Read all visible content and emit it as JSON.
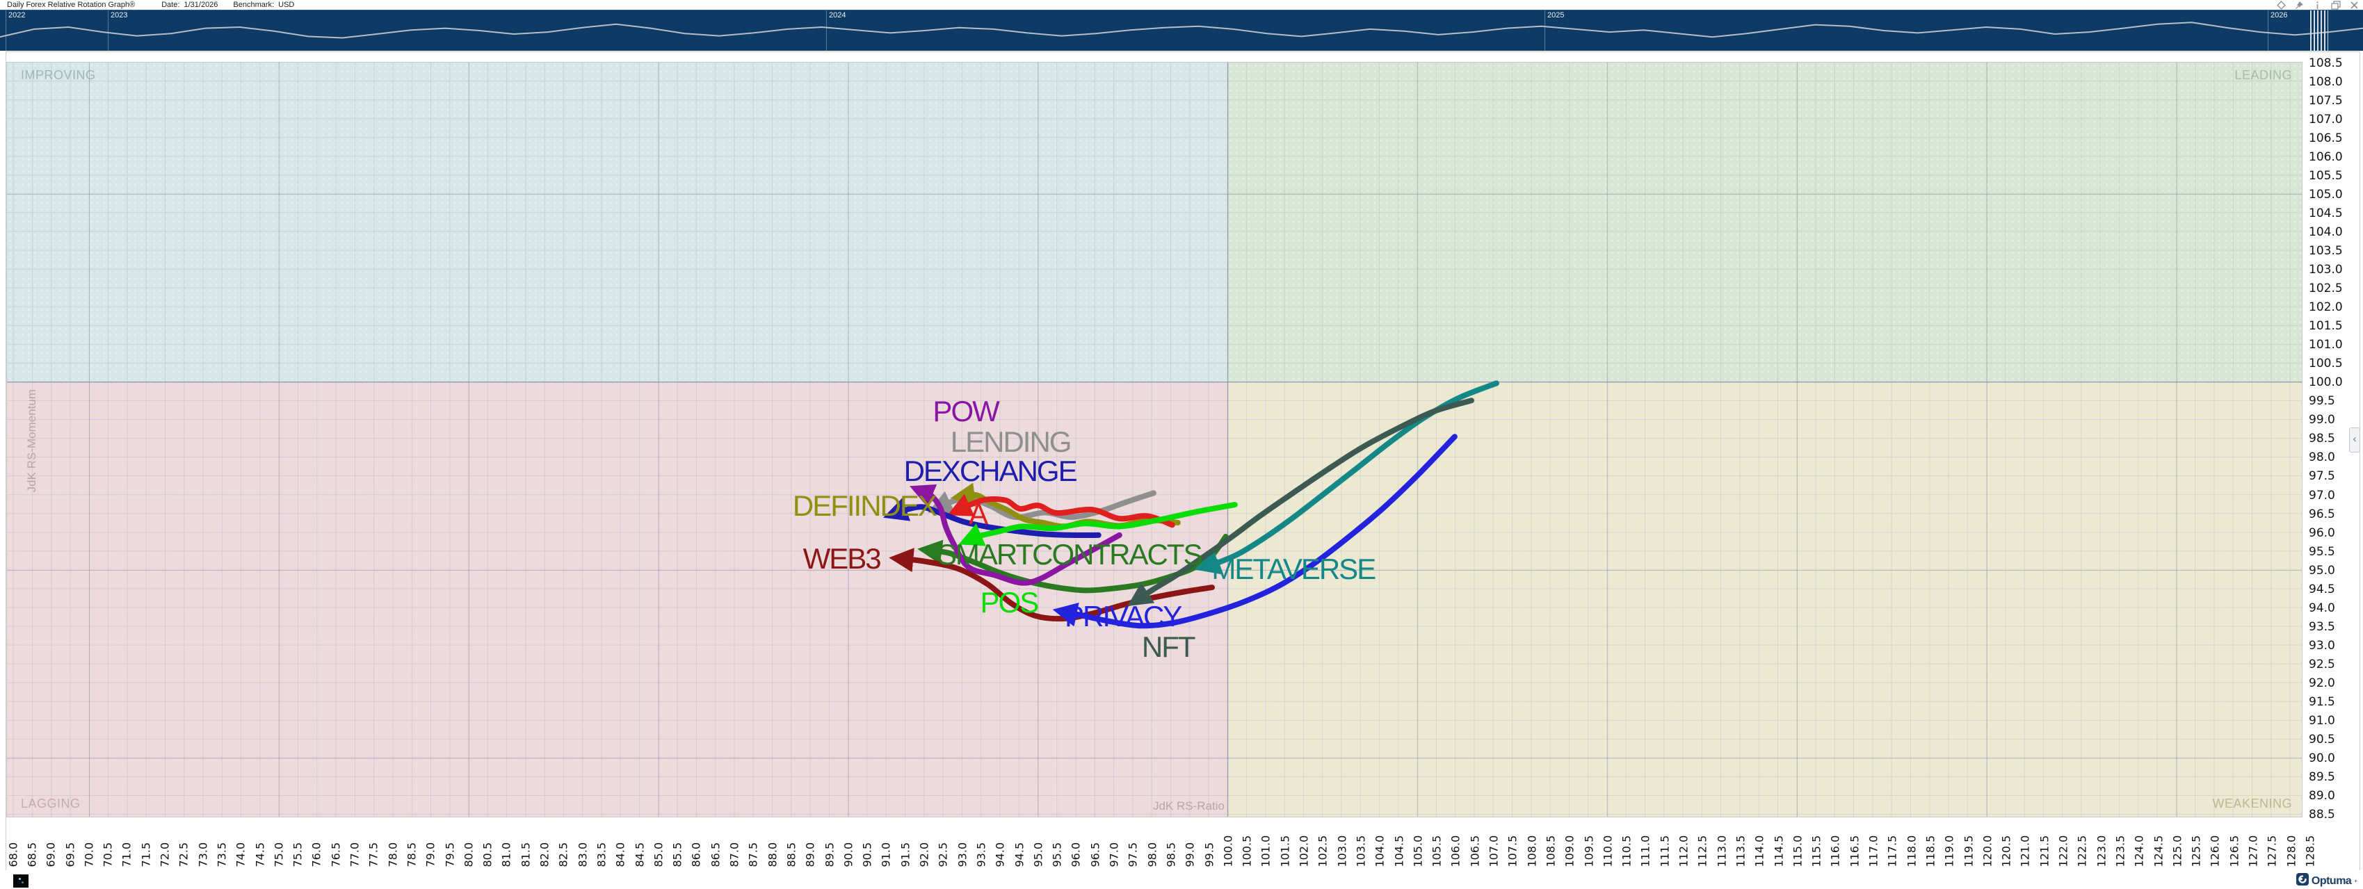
{
  "window": {
    "title": "Daily Forex Relative Rotation Graph®",
    "date_label": "Date:",
    "date_value": "1/31/2026",
    "benchmark_label": "Benchmark:",
    "benchmark_value": "USD",
    "toolbar_icons": [
      "diamond-icon",
      "pin-icon",
      "info-icon",
      "copy-window-icon",
      "close-icon"
    ]
  },
  "timeline": {
    "background": "#0e3a66",
    "line_color": "#b6bec6",
    "years": [
      {
        "label": "2022",
        "x": 8
      },
      {
        "label": "2023",
        "x": 155
      },
      {
        "label": "2024",
        "x": 1188
      },
      {
        "label": "2025",
        "x": 2221
      },
      {
        "label": "2026",
        "x": 3261
      }
    ],
    "marker_x": 3322,
    "marker_width": 26,
    "spark": [
      0.72,
      0.45,
      0.38,
      0.55,
      0.68,
      0.6,
      0.42,
      0.38,
      0.52,
      0.7,
      0.75,
      0.62,
      0.48,
      0.42,
      0.5,
      0.62,
      0.55,
      0.4,
      0.28,
      0.42,
      0.6,
      0.68,
      0.58,
      0.45,
      0.38,
      0.48,
      0.58,
      0.5,
      0.4,
      0.45,
      0.58,
      0.68,
      0.6,
      0.48,
      0.4,
      0.35,
      0.45,
      0.6,
      0.7,
      0.58,
      0.45,
      0.52,
      0.64,
      0.55,
      0.42,
      0.35,
      0.45,
      0.55,
      0.48,
      0.6,
      0.72,
      0.6,
      0.45,
      0.3,
      0.35,
      0.5,
      0.58,
      0.48,
      0.38,
      0.45,
      0.62,
      0.55,
      0.42,
      0.28,
      0.22,
      0.4,
      0.55,
      0.65,
      0.55,
      0.42
    ]
  },
  "chart_data": {
    "type": "scatter",
    "subtype": "relative-rotation-graph",
    "title": "Daily Forex Relative Rotation Graph",
    "benchmark": "USD",
    "xlabel": "JdK RS-Ratio",
    "ylabel": "JdK RS-Momentum",
    "grid": "on",
    "x_axis": {
      "min": 67.86,
      "max": 128.3,
      "tick_start": 68.0,
      "tick_end": 128.5,
      "tick_step": 0.5,
      "tick_format": "%.1f"
    },
    "y_axis": {
      "min": 88.43,
      "max": 108.49,
      "tick_start": 88.5,
      "tick_end": 108.5,
      "tick_step": 0.5,
      "tick_format": "%.1f"
    },
    "center": [
      100.0,
      100.0
    ],
    "quadrants": [
      {
        "name": "IMPROVING",
        "position": "top-left",
        "color": "#d6e6e9",
        "label_color": "#9fb6ba"
      },
      {
        "name": "LEADING",
        "position": "top-right",
        "color": "#d8e7d5",
        "label_color": "#a6bda6"
      },
      {
        "name": "LAGGING",
        "position": "bottom-left",
        "color": "#ecdade",
        "label_color": "#c7a9b1"
      },
      {
        "name": "WEAKENING",
        "position": "bottom-right",
        "color": "#ebe8d4",
        "label_color": "#bdb88f"
      }
    ],
    "series": [
      {
        "name": "LENDING",
        "color": "#8f8f8f",
        "label_at": [
          94.29,
          98.37
        ],
        "points": [
          [
            98.06,
            97.04
          ],
          [
            97.34,
            96.8
          ],
          [
            96.61,
            96.54
          ],
          [
            95.88,
            96.4
          ],
          [
            95.2,
            96.52
          ],
          [
            94.41,
            96.4
          ],
          [
            93.77,
            96.69
          ],
          [
            93.22,
            96.9
          ],
          [
            92.77,
            96.82
          ],
          [
            92.29,
            96.6
          ]
        ]
      },
      {
        "name": "DEFIINDEX",
        "color": "#8f8f12",
        "label_at": [
          90.44,
          96.67
        ],
        "points": [
          [
            98.7,
            96.25
          ],
          [
            97.89,
            96.32
          ],
          [
            97.16,
            96.17
          ],
          [
            96.34,
            96.28
          ],
          [
            95.7,
            96.15
          ],
          [
            95.15,
            96.25
          ],
          [
            94.66,
            96.34
          ],
          [
            94.18,
            96.6
          ],
          [
            93.74,
            96.8
          ],
          [
            93.37,
            96.99
          ],
          [
            92.9,
            96.93
          ]
        ]
      },
      {
        "name": "A",
        "color": "#e01f1f",
        "label_at": [
          93.43,
          96.45
        ],
        "points": [
          [
            98.55,
            96.19
          ],
          [
            97.89,
            96.43
          ],
          [
            97.16,
            96.36
          ],
          [
            96.43,
            96.6
          ],
          [
            95.51,
            96.51
          ],
          [
            95.02,
            96.71
          ],
          [
            94.54,
            96.62
          ],
          [
            94.18,
            96.84
          ],
          [
            93.68,
            96.87
          ],
          [
            93.28,
            96.75
          ],
          [
            92.8,
            96.53
          ]
        ]
      },
      {
        "name": "DEXCHANGE",
        "color": "#1d1dae",
        "label_at": [
          93.75,
          97.6
        ],
        "points": [
          [
            96.61,
            95.92
          ],
          [
            95.88,
            95.92
          ],
          [
            95.15,
            95.95
          ],
          [
            94.41,
            96.03
          ],
          [
            93.68,
            96.14
          ],
          [
            93.04,
            96.28
          ],
          [
            92.44,
            96.51
          ],
          [
            91.95,
            96.67
          ],
          [
            91.49,
            96.58
          ],
          [
            91.12,
            96.45
          ]
        ]
      },
      {
        "name": "POS",
        "color": "#08dd08",
        "label_at": [
          94.25,
          94.1
        ],
        "points": [
          [
            100.2,
            96.73
          ],
          [
            99.18,
            96.54
          ],
          [
            98.17,
            96.32
          ],
          [
            97.16,
            96.15
          ],
          [
            96.25,
            96.23
          ],
          [
            95.42,
            96.1
          ],
          [
            94.6,
            96.15
          ],
          [
            93.96,
            96.01
          ],
          [
            93.41,
            95.88
          ],
          [
            93.1,
            95.75
          ]
        ]
      },
      {
        "name": "SMARTCONTRACTS",
        "color": "#2a7a22",
        "label_at": [
          95.84,
          95.38
        ],
        "points": [
          [
            99.96,
            95.88
          ],
          [
            99.58,
            95.36
          ],
          [
            99.08,
            95.03
          ],
          [
            98.48,
            94.81
          ],
          [
            97.8,
            94.62
          ],
          [
            97.07,
            94.51
          ],
          [
            96.28,
            94.45
          ],
          [
            95.51,
            94.53
          ],
          [
            94.74,
            94.69
          ],
          [
            94.01,
            94.92
          ],
          [
            93.31,
            95.21
          ],
          [
            92.64,
            95.45
          ],
          [
            92.03,
            95.53
          ]
        ]
      },
      {
        "name": "WEB3",
        "color": "#8c1616",
        "label_at": [
          89.84,
          95.27
        ],
        "points": [
          [
            99.6,
            94.53
          ],
          [
            98.9,
            94.42
          ],
          [
            98.11,
            94.27
          ],
          [
            97.31,
            94.08
          ],
          [
            96.47,
            93.84
          ],
          [
            95.7,
            93.7
          ],
          [
            94.96,
            93.77
          ],
          [
            94.32,
            94.1
          ],
          [
            93.68,
            94.62
          ],
          [
            92.9,
            95.03
          ],
          [
            91.98,
            95.23
          ],
          [
            91.28,
            95.3
          ]
        ]
      },
      {
        "name": "POW",
        "color": "#8a16a2",
        "label_at": [
          93.11,
          99.19
        ],
        "points": [
          [
            97.16,
            95.92
          ],
          [
            95.88,
            95.21
          ],
          [
            94.78,
            94.66
          ],
          [
            93.86,
            94.86
          ],
          [
            93.17,
            95.08
          ],
          [
            92.77,
            95.73
          ],
          [
            92.58,
            96.16
          ],
          [
            92.44,
            96.65
          ],
          [
            92.18,
            96.99
          ],
          [
            91.81,
            97.15
          ]
        ]
      },
      {
        "name": "METAVERSE",
        "color": "#148787",
        "label_at": [
          101.74,
          94.99
        ],
        "points": [
          [
            107.09,
            99.96
          ],
          [
            106.1,
            99.57
          ],
          [
            105.15,
            99.02
          ],
          [
            104.23,
            98.35
          ],
          [
            103.35,
            97.65
          ],
          [
            102.51,
            96.99
          ],
          [
            101.7,
            96.36
          ],
          [
            100.97,
            95.84
          ],
          [
            100.31,
            95.43
          ],
          [
            99.76,
            95.19
          ],
          [
            99.32,
            95.06
          ]
        ]
      },
      {
        "name": "NFT",
        "color": "#3c5a52",
        "label_at": [
          98.44,
          92.92
        ],
        "points": [
          [
            106.43,
            99.5
          ],
          [
            105.44,
            99.21
          ],
          [
            104.49,
            98.76
          ],
          [
            103.53,
            98.24
          ],
          [
            102.62,
            97.65
          ],
          [
            101.7,
            97.02
          ],
          [
            100.86,
            96.43
          ],
          [
            100.13,
            95.88
          ],
          [
            99.4,
            95.36
          ],
          [
            98.7,
            94.88
          ],
          [
            98.04,
            94.47
          ],
          [
            97.53,
            94.14
          ]
        ]
      },
      {
        "name": "PRIVACY",
        "color": "#2323dd",
        "label_at": [
          97.25,
          93.73
        ],
        "points": [
          [
            105.99,
            98.54
          ],
          [
            105.04,
            97.54
          ],
          [
            104.12,
            96.65
          ],
          [
            103.21,
            95.88
          ],
          [
            102.25,
            95.14
          ],
          [
            101.34,
            94.56
          ],
          [
            100.42,
            94.14
          ],
          [
            99.51,
            93.83
          ],
          [
            98.59,
            93.59
          ],
          [
            97.71,
            93.51
          ],
          [
            96.83,
            93.64
          ],
          [
            96.06,
            93.81
          ],
          [
            95.59,
            93.9
          ]
        ]
      }
    ]
  },
  "side_panel": {
    "collapse_chevron": "‹"
  },
  "footer": {
    "logo_text": "Optuma",
    "logo_mark": "+",
    "logo_color": "#1b3e66"
  }
}
